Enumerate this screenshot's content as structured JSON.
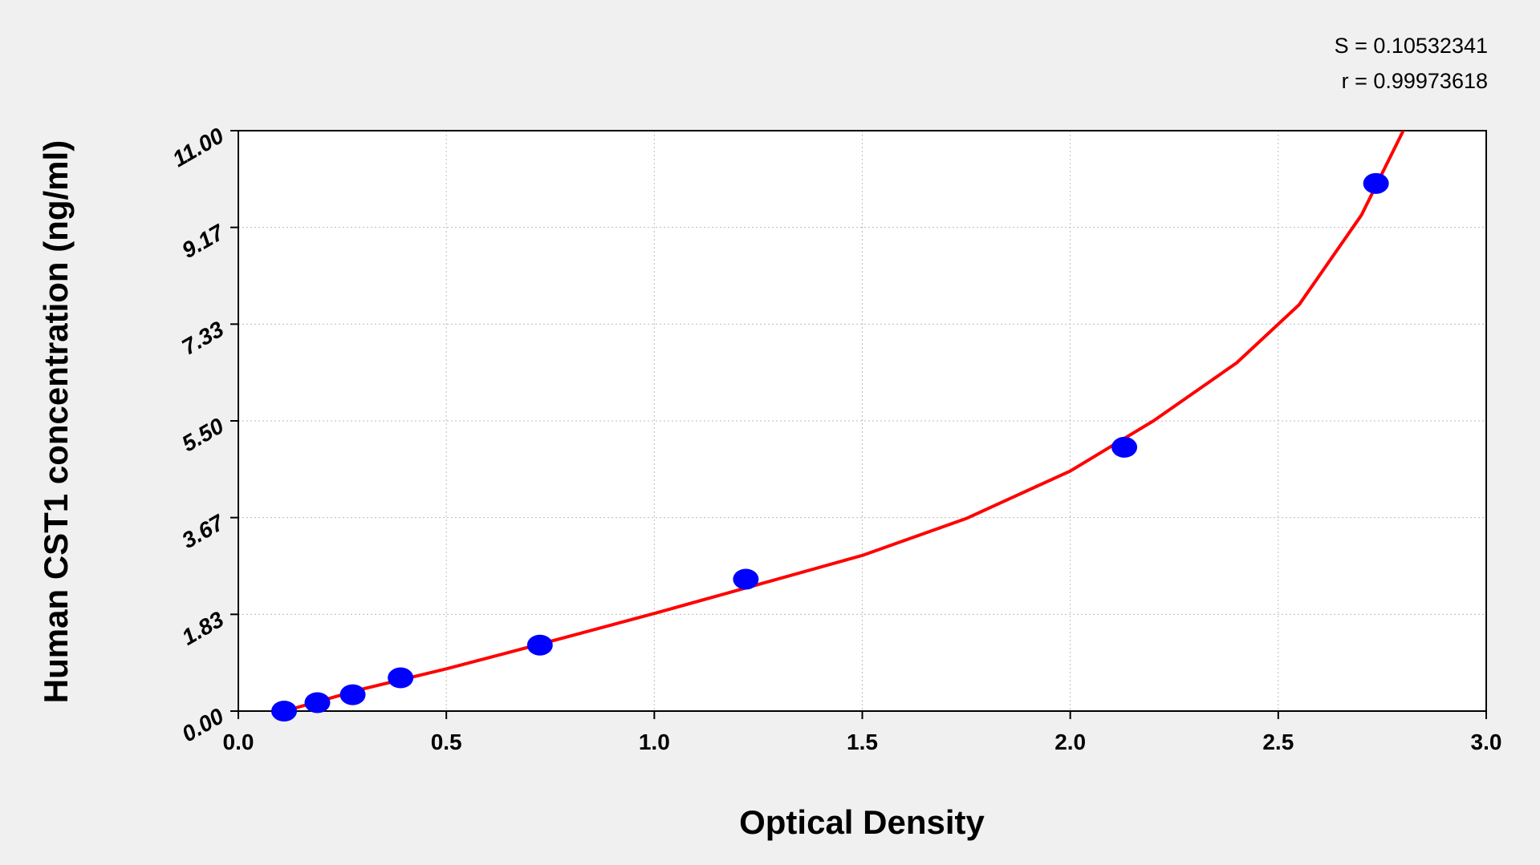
{
  "chart_data": {
    "type": "scatter",
    "annotations": [
      "S = 0.10532341",
      "r = 0.99973618"
    ],
    "x_label": "Optical Density",
    "y_label": "Human CST1 concentration (ng/ml)",
    "points": {
      "color": "#0000ff",
      "x": [
        0.11,
        0.19,
        0.275,
        0.39,
        0.725,
        1.22,
        2.13,
        2.735
      ],
      "y": [
        0,
        0.16,
        0.31,
        0.63,
        1.25,
        2.5,
        5,
        10
      ]
    },
    "fit": {
      "color": "#ff0000",
      "x": [
        0.11,
        0.3,
        0.5,
        0.75,
        1.0,
        1.25,
        1.5,
        1.75,
        2.0,
        2.2,
        2.4,
        2.55,
        2.7,
        2.81
      ],
      "y": [
        0.0,
        0.42,
        0.8,
        1.32,
        1.85,
        2.4,
        2.95,
        3.65,
        4.55,
        5.5,
        6.6,
        7.7,
        9.4,
        11.15
      ]
    },
    "xlim": [
      0,
      3
    ],
    "ylim": [
      0,
      11
    ],
    "xticks": [
      {
        "value": 0,
        "label": "0.0"
      },
      {
        "value": 0.5,
        "label": "0.5"
      },
      {
        "value": 1,
        "label": "1.0"
      },
      {
        "value": 1.5,
        "label": "1.5"
      },
      {
        "value": 2,
        "label": "2.0"
      },
      {
        "value": 2.5,
        "label": "2.5"
      },
      {
        "value": 3,
        "label": "3.0"
      }
    ],
    "yticks": [
      {
        "value": 0,
        "label": "0.00"
      },
      {
        "value": 1.8333,
        "label": "1.83"
      },
      {
        "value": 3.6667,
        "label": "3.67"
      },
      {
        "value": 5.5,
        "label": "5.50"
      },
      {
        "value": 7.3333,
        "label": "7.33"
      },
      {
        "value": 9.1667,
        "label": "9.17"
      },
      {
        "value": 11,
        "label": "11.00"
      }
    ],
    "grid": true
  }
}
